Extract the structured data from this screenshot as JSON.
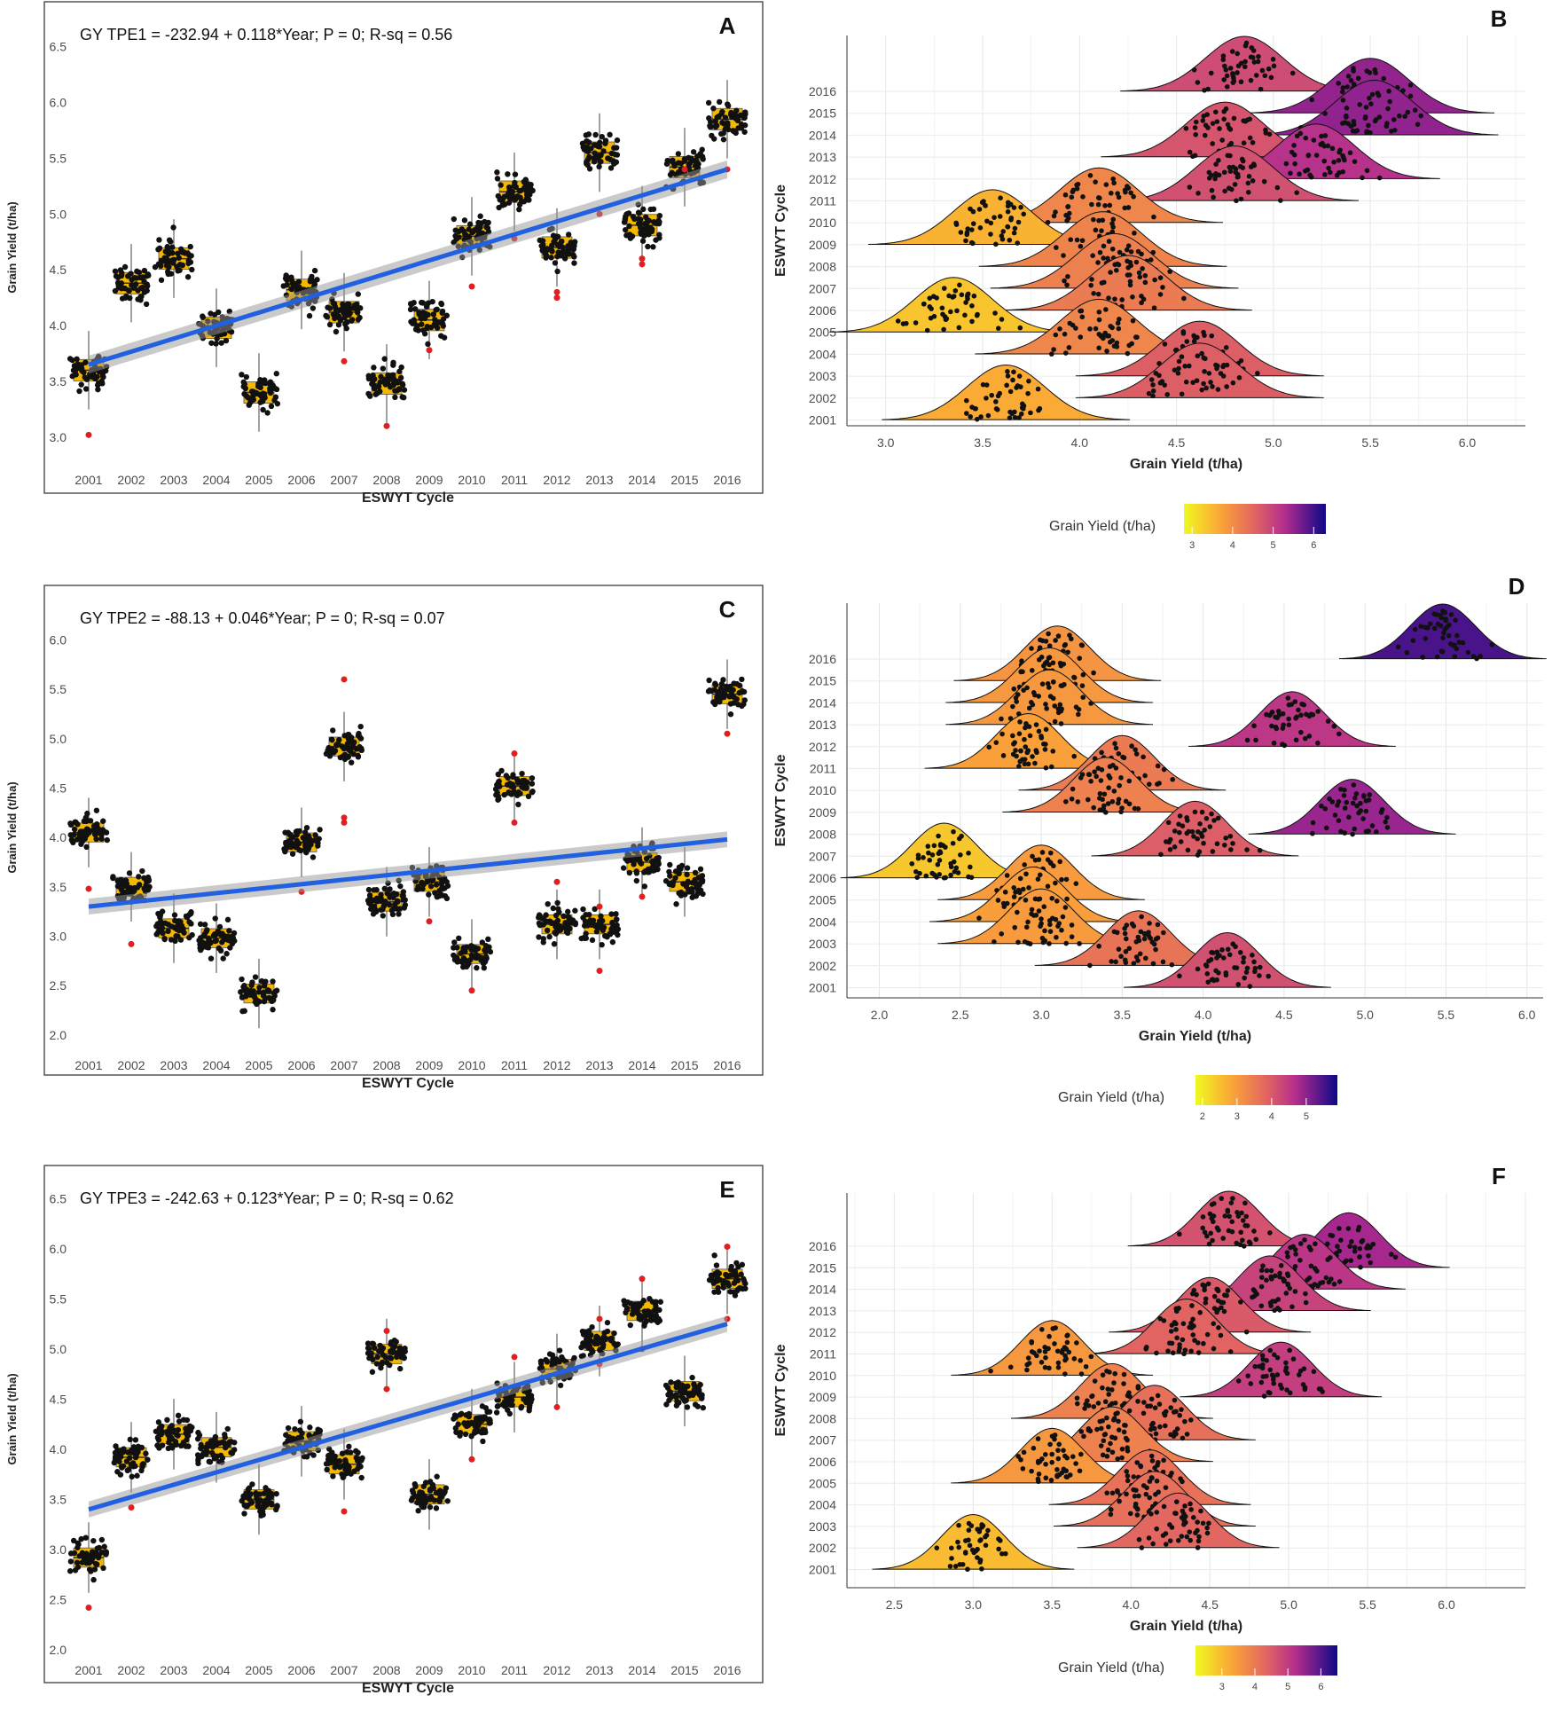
{
  "chart_data": [
    {
      "panel": "A",
      "type": "scatter",
      "equation": "GY TPE1 = -232.94 + 0.118*Year; P = 0; R-sq =  0.56",
      "xlabel": "ESWYT Cycle",
      "ylabel": "Grain Yield (t/ha)",
      "categories": [
        "2001",
        "2002",
        "2003",
        "2004",
        "2005",
        "2006",
        "2007",
        "2008",
        "2009",
        "2010",
        "2011",
        "2012",
        "2013",
        "2014",
        "2015",
        "2016"
      ],
      "ylim": [
        2.8,
        6.6
      ],
      "yticks": [
        "3.0",
        "3.5",
        "4.0",
        "4.5",
        "5.0",
        "5.5",
        "6.0",
        "6.5"
      ],
      "medians": [
        3.6,
        4.38,
        4.6,
        3.98,
        3.4,
        4.32,
        4.12,
        3.48,
        4.05,
        4.8,
        5.2,
        4.7,
        5.55,
        4.9,
        5.42,
        5.85
      ],
      "outliers": [
        [
          3.02
        ],
        [],
        [],
        [],
        [],
        [],
        [
          3.68
        ],
        [
          3.1
        ],
        [
          3.78
        ],
        [
          4.35
        ],
        [
          4.78
        ],
        [
          4.3,
          4.25
        ],
        [
          5.0
        ],
        [
          4.6,
          4.55
        ],
        [
          5.4
        ],
        [
          5.4
        ]
      ],
      "regression": {
        "start": 3.65,
        "end": 5.4
      }
    },
    {
      "panel": "B",
      "type": "area",
      "xlabel": "Grain Yield (t/ha)",
      "ylabel": "ESWYT Cycle",
      "categories": [
        "2001",
        "2002",
        "2003",
        "2004",
        "2005",
        "2006",
        "2007",
        "2008",
        "2009",
        "2010",
        "2011",
        "2012",
        "2013",
        "2014",
        "2015",
        "2016"
      ],
      "xlim": [
        2.8,
        6.3
      ],
      "xticks": [
        "3.0",
        "3.5",
        "4.0",
        "4.5",
        "5.0",
        "5.5",
        "6.0"
      ],
      "peaks": [
        3.62,
        4.62,
        4.62,
        4.1,
        3.35,
        4.25,
        4.18,
        4.12,
        3.55,
        4.1,
        4.8,
        5.22,
        4.75,
        5.52,
        5.5,
        4.85
      ],
      "legend": {
        "title": "Grain Yield (t/ha)",
        "ticks": [
          "3",
          "4",
          "5",
          "6"
        ],
        "range": [
          2.8,
          6.3
        ]
      }
    },
    {
      "panel": "C",
      "type": "scatter",
      "equation": "GY TPE2 = -88.13 + 0.046*Year; P = 0; R-sq =  0.07",
      "xlabel": "ESWYT Cycle",
      "ylabel": "Grain Yield (t/ha)",
      "categories": [
        "2001",
        "2002",
        "2003",
        "2004",
        "2005",
        "2006",
        "2007",
        "2008",
        "2009",
        "2010",
        "2011",
        "2012",
        "2013",
        "2014",
        "2015",
        "2016"
      ],
      "ylim": [
        1.9,
        6.3
      ],
      "yticks": [
        "2.0",
        "2.5",
        "3.0",
        "3.5",
        "4.0",
        "4.5",
        "5.0",
        "5.5",
        "6.0"
      ],
      "medians": [
        4.05,
        3.5,
        3.08,
        2.98,
        2.42,
        3.95,
        4.92,
        3.35,
        3.55,
        2.82,
        4.52,
        3.12,
        3.12,
        3.75,
        3.55,
        5.45
      ],
      "outliers": [
        [
          3.48
        ],
        [
          2.92
        ],
        [],
        [],
        [],
        [
          3.45
        ],
        [
          5.6,
          4.2,
          4.15
        ],
        [],
        [
          3.15
        ],
        [
          2.45
        ],
        [
          4.85,
          4.15
        ],
        [
          3.55
        ],
        [
          2.65,
          3.3
        ],
        [
          3.4
        ],
        [],
        [
          5.05
        ]
      ],
      "regression": {
        "start": 3.3,
        "end": 3.98
      }
    },
    {
      "panel": "D",
      "type": "area",
      "xlabel": "Grain Yield (t/ha)",
      "ylabel": "ESWYT Cycle",
      "categories": [
        "2001",
        "2002",
        "2003",
        "2004",
        "2005",
        "2006",
        "2007",
        "2008",
        "2009",
        "2010",
        "2011",
        "2012",
        "2013",
        "2014",
        "2015",
        "2016"
      ],
      "xlim": [
        1.8,
        6.1
      ],
      "xticks": [
        "2.0",
        "2.5",
        "3.0",
        "3.5",
        "4.0",
        "4.5",
        "5.0",
        "5.5",
        "6.0"
      ],
      "peaks": [
        4.15,
        3.6,
        3.0,
        2.95,
        3.0,
        2.4,
        3.95,
        4.92,
        3.4,
        3.5,
        2.92,
        4.55,
        3.05,
        3.05,
        3.1,
        5.48
      ],
      "legend": {
        "title": "Grain Yield (t/ha)",
        "ticks": [
          "2",
          "3",
          "4",
          "5"
        ],
        "range": [
          1.8,
          5.9
        ]
      }
    },
    {
      "panel": "E",
      "type": "scatter",
      "equation": "GY TPE3 = -242.63 + 0.123*Year; P = 0; R-sq =  0.62",
      "xlabel": "ESWYT Cycle",
      "ylabel": "Grain Yield (t/ha)",
      "categories": [
        "2001",
        "2002",
        "2003",
        "2004",
        "2005",
        "2006",
        "2007",
        "2008",
        "2009",
        "2010",
        "2011",
        "2012",
        "2013",
        "2014",
        "2015",
        "2016"
      ],
      "ylim": [
        2.0,
        6.6
      ],
      "yticks": [
        "2.0",
        "2.5",
        "3.0",
        "3.5",
        "4.0",
        "4.5",
        "5.0",
        "5.5",
        "6.0",
        "6.5"
      ],
      "medians": [
        2.92,
        3.92,
        4.15,
        4.02,
        3.5,
        4.08,
        3.85,
        4.95,
        3.55,
        4.25,
        4.52,
        4.8,
        5.08,
        5.38,
        4.58,
        5.7
      ],
      "outliers": [
        [
          2.42
        ],
        [
          3.42
        ],
        [],
        [],
        [],
        [],
        [
          3.38
        ],
        [
          5.18,
          4.6
        ],
        [],
        [
          3.9
        ],
        [
          4.92
        ],
        [
          4.42
        ],
        [
          5.3,
          4.85
        ],
        [
          5.7,
          5.0
        ],
        [],
        [
          6.02,
          5.3
        ]
      ],
      "regression": {
        "start": 3.4,
        "end": 5.25
      }
    },
    {
      "panel": "F",
      "type": "area",
      "xlabel": "Grain Yield (t/ha)",
      "ylabel": "ESWYT Cycle",
      "categories": [
        "2001",
        "2002",
        "2003",
        "2004",
        "2005",
        "2006",
        "2007",
        "2008",
        "2009",
        "2010",
        "2011",
        "2012",
        "2013",
        "2014",
        "2015",
        "2016"
      ],
      "xlim": [
        2.2,
        6.5
      ],
      "xticks": [
        "2.5",
        "3.0",
        "3.5",
        "4.0",
        "4.5",
        "5.0",
        "5.5",
        "6.0"
      ],
      "peaks": [
        3.0,
        4.3,
        4.15,
        4.12,
        3.5,
        3.88,
        4.15,
        3.88,
        4.95,
        3.5,
        4.35,
        4.5,
        4.88,
        5.1,
        5.38,
        4.62
      ],
      "legend": {
        "title": "Grain Yield (t/ha)",
        "ticks": [
          "3",
          "4",
          "5",
          "6"
        ],
        "range": [
          2.2,
          6.5
        ]
      }
    }
  ]
}
